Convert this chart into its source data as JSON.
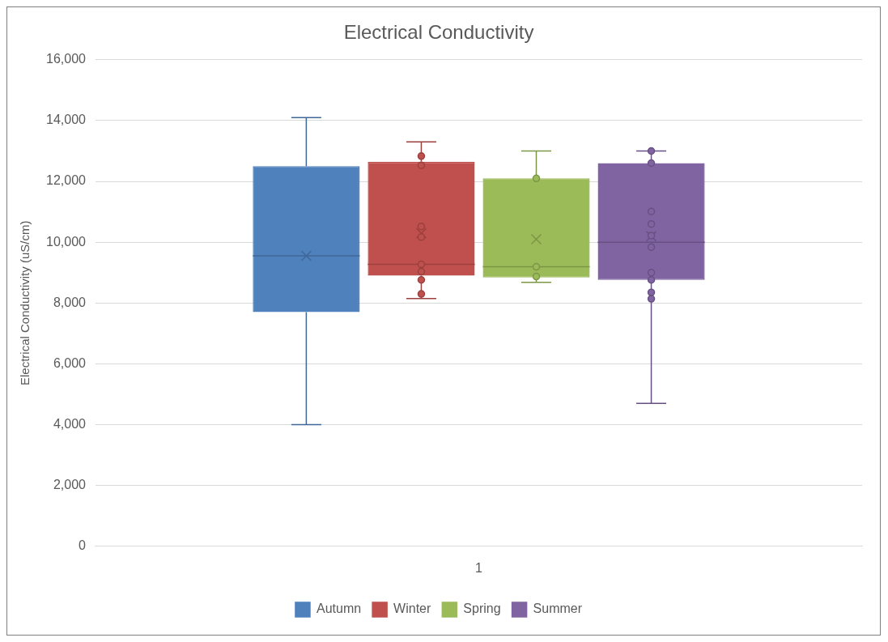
{
  "chart_data": {
    "type": "box",
    "title": "Electrical Conductivity",
    "ylabel": "Electrical Conductivity (uS/cm)",
    "categories": [
      "1"
    ],
    "ylim": [
      0,
      16000
    ],
    "yticks": [
      0,
      {
        "value": 2000,
        "label": "2,000"
      },
      {
        "value": 4000,
        "label": "4,000"
      },
      {
        "value": 6000,
        "label": "6,000"
      },
      {
        "value": 8000,
        "label": "8,000"
      },
      {
        "value": 10000,
        "label": "10,000"
      },
      {
        "value": 12000,
        "label": "12,000"
      },
      {
        "value": 14000,
        "label": "14,000"
      },
      {
        "value": 16000,
        "label": "16,000"
      }
    ],
    "grid": "y",
    "legend": "bottom",
    "series": [
      {
        "name": "Autumn",
        "color": "#4f81bd",
        "boxes": [
          {
            "low": 4000,
            "q1": 7700,
            "median": 9550,
            "q3": 12500,
            "high": 14100,
            "mean": 9550
          }
        ]
      },
      {
        "name": "Winter",
        "color": "#c0504d",
        "boxes": [
          {
            "low": 8150,
            "q1": 8900,
            "median": 9270,
            "q3": 12650,
            "high": 13300,
            "mean": 10300,
            "outliers": [
              12830,
              12530,
              10520,
              10170,
              9270,
              9030,
              8760,
              8300
            ]
          }
        ]
      },
      {
        "name": "Spring",
        "color": "#9bbb59",
        "boxes": [
          {
            "low": 8680,
            "q1": 8840,
            "median": 9190,
            "q3": 12100,
            "high": 13000,
            "mean": 10100,
            "outliers": [
              12100,
              9190,
              8870
            ]
          }
        ]
      },
      {
        "name": "Summer",
        "color": "#8064a2",
        "boxes": [
          {
            "low": 4700,
            "q1": 8760,
            "median": 10000,
            "q3": 12600,
            "high": 13000,
            "mean": 10200,
            "outliers": [
              13000,
              12600,
              11010,
              10600,
              10220,
              9840,
              9000,
              8760,
              8350,
              8140
            ]
          }
        ]
      }
    ]
  }
}
